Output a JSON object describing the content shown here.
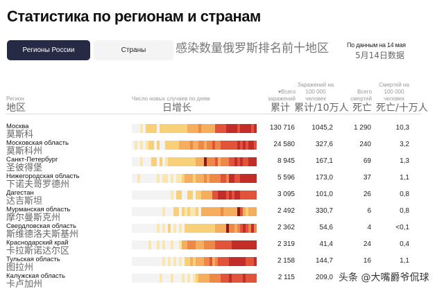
{
  "title": "Статистика по регионам и странам",
  "tabs": [
    {
      "label": "Регионы России",
      "active": true
    },
    {
      "label": "Страны",
      "active": false
    }
  ],
  "cn_subtitle": "感染数量俄罗斯排名前十地区",
  "as_of": "По данным на 14 мая",
  "as_of_cn": "5月14日数据",
  "columns": {
    "region": "Регион",
    "region_cn": "地区",
    "daily": "Число новых случаев по дням",
    "daily_cn": "日增长",
    "total": "▾Всего заражений",
    "total_cn": "累计",
    "per100k": "Заражений на 100 000 человек",
    "per100k_cn": "累计/10万人",
    "deaths": "Всего смертей",
    "deaths_cn": "死亡",
    "deaths100k": "Смертей на 100 000 человек",
    "deaths100k_cn": "死亡/十万人"
  },
  "heat_colors": [
    "#f3f3f3",
    "#fbe6ae",
    "#f8d07a",
    "#f4ae5e",
    "#ee8848",
    "#e2543a",
    "#c22d2a",
    "#8a1a12"
  ],
  "rows": [
    {
      "name": "Москва",
      "cn": "莫斯科",
      "total": "130 716",
      "per100k": "1045,2",
      "deaths": "1 290",
      "deaths100k": "10,3",
      "levels": "000102222022222222223333433333555566665666656"
    },
    {
      "name": "Московская область",
      "cn": "莫斯科州",
      "total": "24 580",
      "per100k": "327,6",
      "deaths": "240",
      "deaths100k": "3,2",
      "levels": "010101220200222223333433443445445555556565665"
    },
    {
      "name": "Санкт-Петербург",
      "cn": "圣彼得堡",
      "total": "8 945",
      "per100k": "167,1",
      "deaths": "69",
      "deaths100k": "1,3",
      "levels": "000100022020122222222223337444534445565655666"
    },
    {
      "name": "Нижегородская область",
      "cn": "下诺夫哥罗德州",
      "total": "5 596",
      "per100k": "173,0",
      "deaths": "37",
      "deaths100k": "1,1",
      "levels": "001000000101101011233323334344445546655666666"
    },
    {
      "name": "Дагестан",
      "cn": "达吉斯坦",
      "total": "3 095",
      "per100k": "101,0",
      "deaths": "26",
      "deaths100k": "0,8",
      "levels": "000000000000001022002202233335566656566555555"
    },
    {
      "name": "Мурманская область",
      "cn": "摩尔曼斯克州",
      "total": "2 492",
      "per100k": "330,7",
      "deaths": "6",
      "deaths100k": "0,8",
      "levels": "000000000001000220212112033333334333337532333"
    },
    {
      "name": "Свердловская область",
      "cn": "斯维德洛夫斯基州",
      "total": "2 362",
      "per100k": "54,6",
      "deaths": "4",
      "deaths100k": "<0,1",
      "levels": "000000000101020101022222222222333374434565464"
    },
    {
      "name": "Краснодарский край",
      "cn": "卡拉斯诺达尔区",
      "total": "2 319",
      "per100k": "41,4",
      "deaths": "24",
      "deaths100k": "0,4",
      "levels": "000000100101001001334443334444555555666666666"
    },
    {
      "name": "Тульская область",
      "cn": "图拉州",
      "total": "2 158",
      "per100k": "144,7",
      "deaths": "16",
      "deaths100k": "1,1",
      "levels": "000000000001010101022323334453455556666665556"
    },
    {
      "name": "Калужская область",
      "cn": "卡卢加州",
      "total": "2 115",
      "per100k": "209,0",
      "deaths": "",
      "deaths100k": "",
      "levels": "000000000010001000101012333344445556555565555"
    }
  ],
  "watermark": "头条 @大嘴爵爷侃球"
}
